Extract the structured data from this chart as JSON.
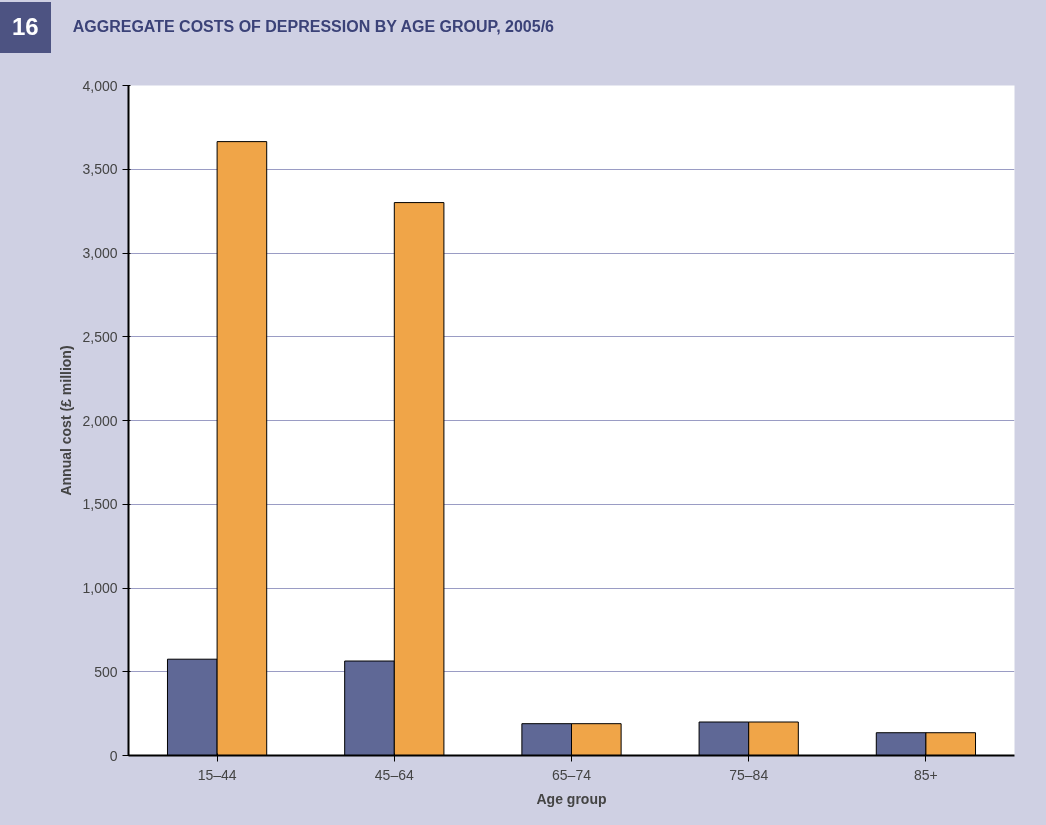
{
  "chart_data": {
    "type": "bar",
    "title": "AGGREGATE COSTS OF DEPRESSION BY AGE GROUP, 2005/6",
    "annotations": [
      "16"
    ],
    "xlabel": "Age group",
    "ylabel": "Annual cost (£ million)",
    "categories": [
      "15–44",
      "45–64",
      "65–74",
      "75–84",
      "85+"
    ],
    "series": [
      {
        "color": "#5f6896",
        "values": [
          575,
          564,
          190,
          200,
          136
        ]
      },
      {
        "color": "#f0a548",
        "values": [
          3665,
          3301,
          190,
          200,
          136
        ]
      }
    ],
    "ylim": [
      0,
      4000
    ],
    "yticks": [
      {
        "value": 0,
        "label": "0"
      },
      {
        "value": 500,
        "label": "500"
      },
      {
        "value": 1000,
        "label": "1,000"
      },
      {
        "value": 1500,
        "label": "1,500"
      },
      {
        "value": 2000,
        "label": "2,000"
      },
      {
        "value": 2500,
        "label": "2,500"
      },
      {
        "value": 3000,
        "label": "3,000"
      },
      {
        "value": 3500,
        "label": "3,500"
      },
      {
        "value": 4000,
        "label": "4,000"
      }
    ],
    "grid": "y"
  }
}
